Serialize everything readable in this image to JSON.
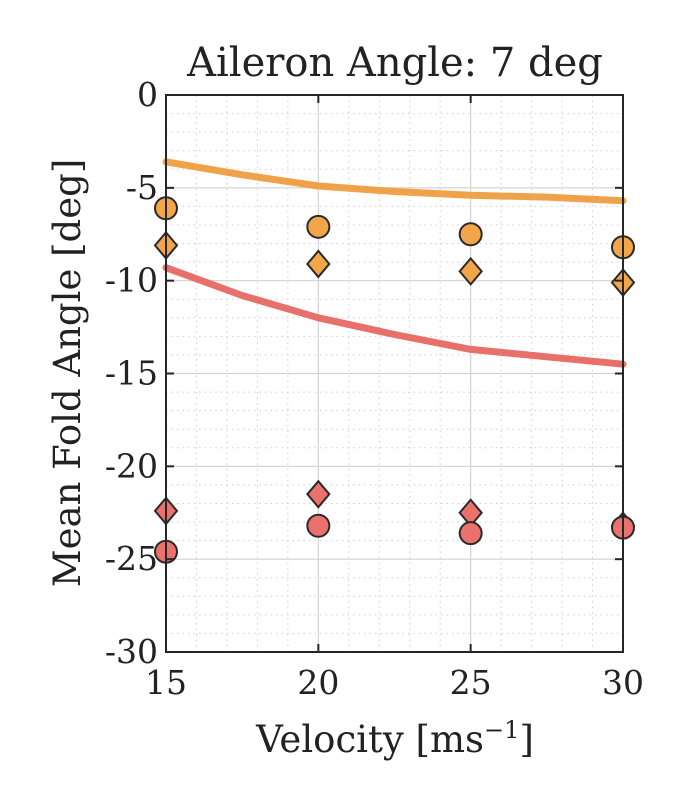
{
  "chart_data": {
    "type": "line",
    "title": "Aileron Angle: 7 deg",
    "xlabel": "Velocity [ms",
    "xlabel_sup": "−1",
    "xlabel_end": "]",
    "ylabel": "Mean Fold Angle [deg]",
    "xlim": [
      15,
      30
    ],
    "ylim": [
      -30,
      0
    ],
    "xticks": [
      15,
      20,
      25,
      30
    ],
    "yticks": [
      0,
      -5,
      -10,
      -15,
      -20,
      -25,
      -30
    ],
    "grid": true,
    "minor_grid": true,
    "lines": [
      {
        "color": "#EFA24A",
        "x": [
          15,
          17.5,
          20,
          22.5,
          25,
          27.5,
          30
        ],
        "y": [
          -3.6,
          -4.3,
          -4.9,
          -5.2,
          -5.4,
          -5.5,
          -5.7
        ]
      },
      {
        "color": "#E8706B",
        "x": [
          15,
          17.5,
          20,
          22.5,
          25,
          27.5,
          30
        ],
        "y": [
          -9.3,
          -10.8,
          -12.0,
          -12.9,
          -13.7,
          -14.1,
          -14.5
        ]
      }
    ],
    "points": [
      {
        "marker": "circle",
        "color": "#F2A649",
        "x": [
          15,
          20,
          25,
          30
        ],
        "y": [
          -6.1,
          -7.1,
          -7.5,
          -8.2
        ]
      },
      {
        "marker": "diamond",
        "color": "#F2A649",
        "x": [
          15,
          20,
          25,
          30
        ],
        "y": [
          -8.1,
          -9.1,
          -9.5,
          -10.1
        ]
      },
      {
        "marker": "diamond",
        "color": "#EB716C",
        "x": [
          15,
          20,
          25,
          30
        ],
        "y": [
          -22.4,
          -21.5,
          -22.5,
          -23.2
        ]
      },
      {
        "marker": "circle",
        "color": "#EB716C",
        "x": [
          15,
          20,
          25,
          30
        ],
        "y": [
          -24.6,
          -23.2,
          -23.6,
          -23.3
        ]
      }
    ]
  }
}
